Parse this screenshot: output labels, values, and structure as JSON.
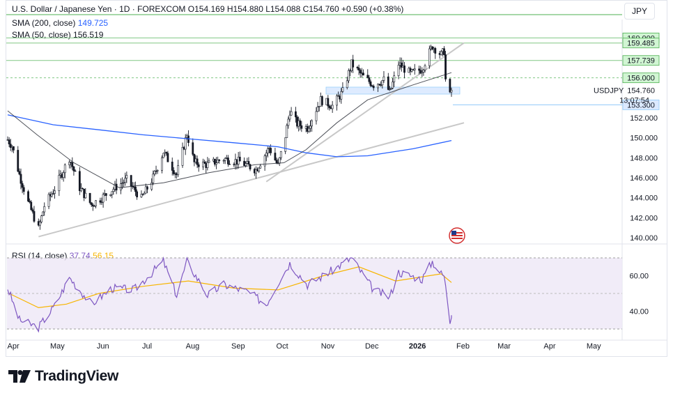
{
  "legend": {
    "symbol_line": "U.S. Dollar / Japanese Yen · 1D · FOREXCOM",
    "ohlc": "O154.169  H154.880  L154.088  C154.760  +0.590 (+0.38%)",
    "sma200_label": "SMA (200, close)",
    "sma200_value": "149.725",
    "sma50_label": "SMA (50, close)",
    "sma50_value": "156.519",
    "rsi_label": "RSI (14, close)",
    "rsi_value": "37.74",
    "rsi_ma_value": "56.15"
  },
  "currency_button": "JPY",
  "symbol_tag": "USDJPY",
  "countdown": "13:07:54",
  "brand": "TradingView",
  "colors": {
    "candles": "#131722",
    "sma200": "#2962ff",
    "sma50": "#131722",
    "rsi": "#7e57c2",
    "rsi_ma": "#f7b500",
    "level_lines": "#4caf50",
    "price_tag": "#d1f5d3",
    "current_tag": "#dbe9ff"
  },
  "chart_data": {
    "type": "candlestick",
    "title": "U.S. Dollar / Japanese Yen · 1D · FOREXCOM",
    "price_axis": {
      "ticks": [
        "140.000",
        "142.000",
        "144.000",
        "146.000",
        "148.000",
        "150.000",
        "152.000"
      ],
      "range": [
        139.5,
        161.5
      ]
    },
    "x_axis": {
      "ticks": [
        "Apr",
        "May",
        "Jun",
        "Jul",
        "Aug",
        "Sep",
        "Oct",
        "Nov",
        "Dec",
        "2026",
        "Feb",
        "Mar",
        "Apr",
        "May"
      ]
    },
    "levels": [
      {
        "label": "160.000",
        "value": 160.0
      },
      {
        "label": "159.485",
        "value": 159.485
      },
      {
        "label": "157.739",
        "value": 157.739
      },
      {
        "label": "156.000",
        "value": 156.0
      },
      {
        "label": "153.300",
        "value": 153.3
      }
    ],
    "current_price": {
      "label": "154.760",
      "value": 154.76
    },
    "price_path": [
      {
        "date": "2025-03-31",
        "value": 149.8
      },
      {
        "date": "2025-04-03",
        "value": 149.2
      },
      {
        "date": "2025-04-08",
        "value": 146.3
      },
      {
        "date": "2025-04-14",
        "value": 143.5
      },
      {
        "date": "2025-04-21",
        "value": 140.9
      },
      {
        "date": "2025-04-25",
        "value": 143.2
      },
      {
        "date": "2025-05-02",
        "value": 144.9
      },
      {
        "date": "2025-05-12",
        "value": 148.0
      },
      {
        "date": "2025-05-19",
        "value": 145.0
      },
      {
        "date": "2025-05-27",
        "value": 143.3
      },
      {
        "date": "2025-06-03",
        "value": 144.0
      },
      {
        "date": "2025-06-10",
        "value": 144.8
      },
      {
        "date": "2025-06-20",
        "value": 145.8
      },
      {
        "date": "2025-06-30",
        "value": 143.9
      },
      {
        "date": "2025-07-08",
        "value": 146.0
      },
      {
        "date": "2025-07-15",
        "value": 148.6
      },
      {
        "date": "2025-07-24",
        "value": 146.3
      },
      {
        "date": "2025-07-31",
        "value": 150.4
      },
      {
        "date": "2025-08-05",
        "value": 147.5
      },
      {
        "date": "2025-08-14",
        "value": 147.3
      },
      {
        "date": "2025-08-25",
        "value": 147.9
      },
      {
        "date": "2025-09-05",
        "value": 147.6
      },
      {
        "date": "2025-09-16",
        "value": 146.8
      },
      {
        "date": "2025-09-25",
        "value": 149.0
      },
      {
        "date": "2025-10-01",
        "value": 147.2
      },
      {
        "date": "2025-10-06",
        "value": 150.2
      },
      {
        "date": "2025-10-09",
        "value": 152.7
      },
      {
        "date": "2025-10-14",
        "value": 151.4
      },
      {
        "date": "2025-10-21",
        "value": 151.0
      },
      {
        "date": "2025-10-30",
        "value": 153.8
      },
      {
        "date": "2025-11-07",
        "value": 153.2
      },
      {
        "date": "2025-11-14",
        "value": 154.6
      },
      {
        "date": "2025-11-20",
        "value": 157.4
      },
      {
        "date": "2025-11-28",
        "value": 156.1
      },
      {
        "date": "2025-12-05",
        "value": 155.3
      },
      {
        "date": "2025-12-12",
        "value": 155.8
      },
      {
        "date": "2025-12-16",
        "value": 154.5
      },
      {
        "date": "2025-12-22",
        "value": 157.4
      },
      {
        "date": "2025-12-30",
        "value": 156.4
      },
      {
        "date": "2026-01-07",
        "value": 156.9
      },
      {
        "date": "2026-01-14",
        "value": 159.2
      },
      {
        "date": "2026-01-20",
        "value": 158.3
      },
      {
        "date": "2026-01-22",
        "value": 158.7
      },
      {
        "date": "2026-01-23",
        "value": 155.8
      },
      {
        "date": "2026-01-26",
        "value": 154.2
      },
      {
        "date": "2026-01-27",
        "value": 154.76
      }
    ],
    "sma200": [
      {
        "date": "2025-03-31",
        "value": 152.3
      },
      {
        "date": "2025-05-01",
        "value": 151.3
      },
      {
        "date": "2025-06-01",
        "value": 150.8
      },
      {
        "date": "2025-07-01",
        "value": 150.3
      },
      {
        "date": "2025-08-01",
        "value": 149.9
      },
      {
        "date": "2025-09-01",
        "value": 149.5
      },
      {
        "date": "2025-10-01",
        "value": 149.1
      },
      {
        "date": "2025-10-20",
        "value": 148.5
      },
      {
        "date": "2025-11-10",
        "value": 148.1
      },
      {
        "date": "2025-12-01",
        "value": 148.2
      },
      {
        "date": "2026-01-01",
        "value": 148.9
      },
      {
        "date": "2026-01-27",
        "value": 149.725
      }
    ],
    "sma50": [
      {
        "date": "2025-03-31",
        "value": 152.7
      },
      {
        "date": "2025-04-20",
        "value": 150.3
      },
      {
        "date": "2025-05-15",
        "value": 147.5
      },
      {
        "date": "2025-06-15",
        "value": 145.0
      },
      {
        "date": "2025-07-15",
        "value": 145.5
      },
      {
        "date": "2025-08-15",
        "value": 146.5
      },
      {
        "date": "2025-09-15",
        "value": 147.3
      },
      {
        "date": "2025-10-05",
        "value": 147.5
      },
      {
        "date": "2025-10-20",
        "value": 148.8
      },
      {
        "date": "2025-11-10",
        "value": 151.5
      },
      {
        "date": "2025-12-01",
        "value": 153.8
      },
      {
        "date": "2026-01-01",
        "value": 155.3
      },
      {
        "date": "2026-01-27",
        "value": 156.519
      }
    ],
    "trendlines": [
      {
        "from": {
          "date": "2025-04-21",
          "value": 140.1
        },
        "to": {
          "date": "2026-01-27",
          "value": 151.5
        }
      },
      {
        "from": {
          "date": "2025-09-23",
          "value": 145.6
        },
        "to": {
          "date": "2026-01-27",
          "value": 159.5
        }
      }
    ],
    "rsi": {
      "label": "RSI (14, close)",
      "ticks": [
        "40.00",
        "60.00"
      ],
      "range": [
        30,
        70
      ],
      "rsi_points": [
        {
          "date": "2025-03-31",
          "value": 53
        },
        {
          "date": "2025-04-08",
          "value": 35
        },
        {
          "date": "2025-04-21",
          "value": 31
        },
        {
          "date": "2025-05-02",
          "value": 43
        },
        {
          "date": "2025-05-12",
          "value": 59
        },
        {
          "date": "2025-05-27",
          "value": 44
        },
        {
          "date": "2025-06-10",
          "value": 53
        },
        {
          "date": "2025-06-25",
          "value": 52
        },
        {
          "date": "2025-07-15",
          "value": 68
        },
        {
          "date": "2025-07-24",
          "value": 49
        },
        {
          "date": "2025-07-31",
          "value": 68
        },
        {
          "date": "2025-08-14",
          "value": 49
        },
        {
          "date": "2025-08-25",
          "value": 55
        },
        {
          "date": "2025-09-10",
          "value": 51
        },
        {
          "date": "2025-09-23",
          "value": 44
        },
        {
          "date": "2025-10-01",
          "value": 56
        },
        {
          "date": "2025-10-09",
          "value": 67
        },
        {
          "date": "2025-10-21",
          "value": 55
        },
        {
          "date": "2025-11-05",
          "value": 62
        },
        {
          "date": "2025-11-20",
          "value": 70
        },
        {
          "date": "2025-12-05",
          "value": 52
        },
        {
          "date": "2025-12-16",
          "value": 48
        },
        {
          "date": "2025-12-22",
          "value": 62
        },
        {
          "date": "2026-01-07",
          "value": 58
        },
        {
          "date": "2026-01-14",
          "value": 68
        },
        {
          "date": "2026-01-20",
          "value": 61
        },
        {
          "date": "2026-01-22",
          "value": 60
        },
        {
          "date": "2026-01-26",
          "value": 34
        },
        {
          "date": "2026-01-27",
          "value": 37.74
        }
      ],
      "rsi_ma_points": [
        {
          "date": "2025-04-01",
          "value": 50
        },
        {
          "date": "2025-04-21",
          "value": 42
        },
        {
          "date": "2025-05-10",
          "value": 44
        },
        {
          "date": "2025-06-01",
          "value": 50
        },
        {
          "date": "2025-07-01",
          "value": 54
        },
        {
          "date": "2025-08-01",
          "value": 57
        },
        {
          "date": "2025-09-01",
          "value": 53
        },
        {
          "date": "2025-10-01",
          "value": 52
        },
        {
          "date": "2025-11-01",
          "value": 60
        },
        {
          "date": "2025-11-25",
          "value": 65
        },
        {
          "date": "2025-12-20",
          "value": 57
        },
        {
          "date": "2026-01-20",
          "value": 61
        },
        {
          "date": "2026-01-27",
          "value": 56.15
        }
      ]
    }
  }
}
